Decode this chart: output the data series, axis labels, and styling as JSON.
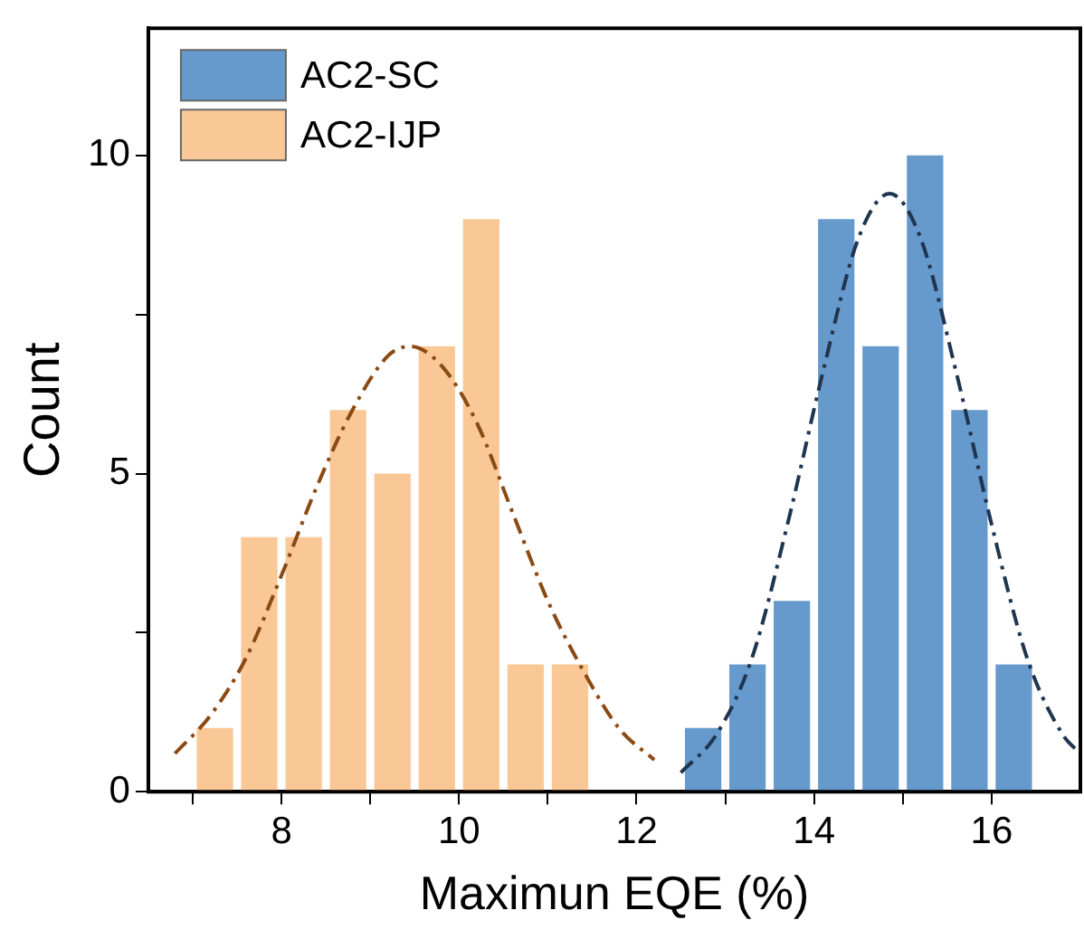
{
  "chart_data": {
    "type": "histogram",
    "xlabel": "Maximun EQE (%)",
    "ylabel": "Count",
    "xlim": [
      6.5,
      17
    ],
    "xticks": [
      {
        "value": 7,
        "label": null
      },
      8,
      {
        "value": 9,
        "label": null
      },
      10,
      {
        "value": 11,
        "label": null
      },
      12,
      {
        "value": 13,
        "label": null
      },
      14,
      {
        "value": 15,
        "label": null
      },
      16
    ],
    "ylim": [
      0,
      12
    ],
    "yticks": [
      0,
      {
        "value": 2.5,
        "label": null
      },
      5,
      {
        "value": 7.5,
        "label": null
      },
      10
    ],
    "grid": false,
    "legend": "top left",
    "series": [
      {
        "name": "AC2-SC",
        "color": "#6699cc",
        "bins": [
          12.5,
          13,
          13.5,
          14,
          14.5,
          15,
          15.5,
          16,
          16.5
        ],
        "values": [
          1,
          2,
          3,
          9,
          7,
          10,
          6,
          2
        ]
      },
      {
        "name": "AC2-IJP",
        "color": "#f9c896",
        "bins": [
          7,
          7.5,
          8,
          8.5,
          9,
          9.5,
          10,
          10.5,
          11,
          11.5
        ],
        "values": [
          1,
          4,
          4,
          6,
          5,
          7,
          9,
          2,
          2
        ]
      },
      {
        "type": "line",
        "color": "#8b4a14",
        "line_style": "dashed",
        "marker": "none",
        "x": [
          6.8,
          7.2,
          7.6,
          8,
          8.4,
          8.8,
          9.2,
          9.45,
          9.8,
          10.2,
          10.6,
          11,
          11.4,
          11.8,
          12.2
        ],
        "values": [
          0.6,
          1.2,
          2.1,
          3.4,
          4.8,
          6,
          6.85,
          7,
          6.7,
          5.8,
          4.4,
          3,
          1.9,
          1,
          0.5
        ]
      },
      {
        "type": "line",
        "color": "#1f3550",
        "line_style": "dashed",
        "marker": "none",
        "x": [
          12.5,
          12.9,
          13.3,
          13.7,
          14.1,
          14.5,
          14.85,
          15.2,
          15.6,
          16,
          16.4,
          16.8,
          17
        ],
        "values": [
          0.3,
          0.9,
          2.1,
          4.2,
          6.6,
          8.7,
          9.4,
          8.7,
          6.6,
          4.2,
          2.1,
          0.9,
          0.6
        ]
      }
    ]
  }
}
